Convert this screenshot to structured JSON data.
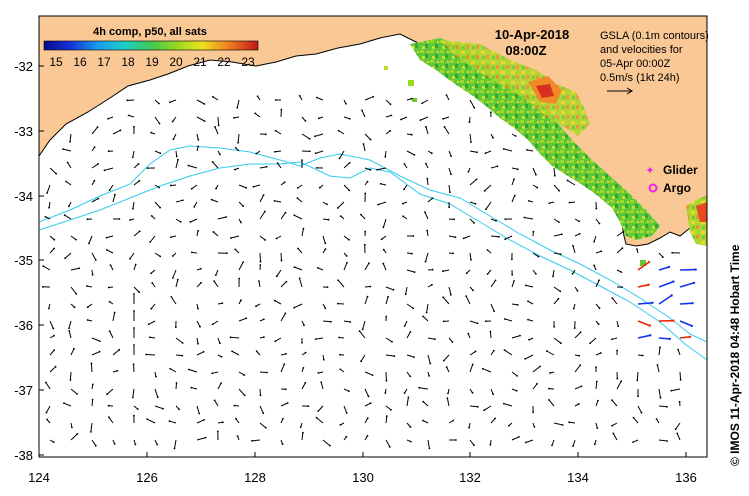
{
  "map": {
    "date": "10-Apr-2018",
    "time": "08:00Z",
    "colorbar_title": "4h comp, p50, all sats",
    "colorbar_ticks": [
      "15",
      "16",
      "17",
      "18",
      "19",
      "20",
      "21",
      "22",
      "23"
    ],
    "info_lines": [
      "GSLA (0.1m contours)",
      "and velocities for",
      "05-Apr 00:00Z",
      "0.5m/s (1kt 24h)"
    ],
    "legend": {
      "glider": "Glider",
      "argo": "Argo"
    },
    "credit": "© IMOS 11-Apr-2018 04:48 Hobart Time",
    "lon_ticks": [
      "124",
      "126",
      "128",
      "130",
      "132",
      "134",
      "136"
    ],
    "lat_ticks": [
      "-32",
      "-33",
      "-34",
      "-35",
      "-36",
      "-37",
      "-38"
    ],
    "colors": {
      "land": "#f9c895",
      "coast": "#000000",
      "contour": "#33ccee",
      "glider": "#ee22ee",
      "argo": "#ee22ee",
      "arrow": "#000000",
      "arrow_blue": "#1133ee",
      "arrow_red": "#ee2200"
    }
  }
}
